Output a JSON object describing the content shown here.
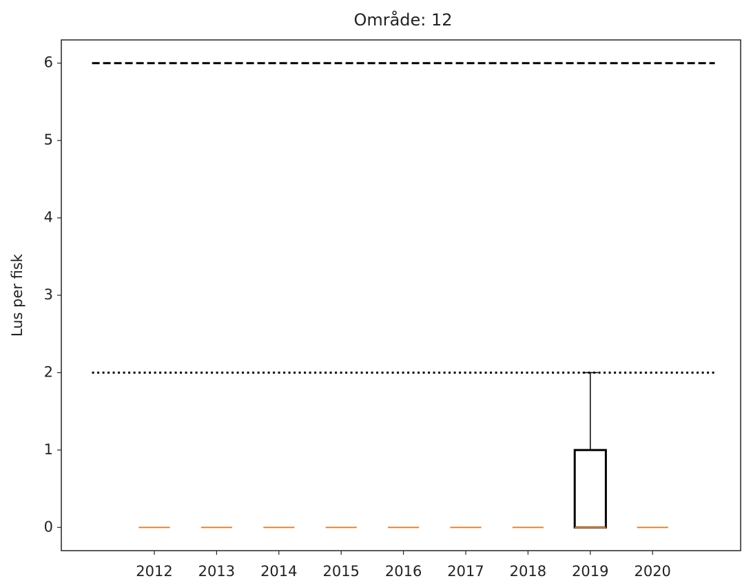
{
  "chart_data": {
    "type": "box",
    "title": "Område: 12",
    "y_label": "Lus per fisk",
    "categories": [
      "2012",
      "2013",
      "2014",
      "2015",
      "2016",
      "2017",
      "2018",
      "2019",
      "2020"
    ],
    "series": [
      {
        "name": null,
        "color": "#ff7f0e",
        "q1": [
          0,
          0,
          0,
          0,
          0,
          0,
          0,
          0,
          0
        ],
        "median": [
          0,
          0,
          0,
          0,
          0,
          0,
          0,
          0,
          0
        ],
        "q3": [
          0,
          0,
          0,
          0,
          0,
          0,
          0,
          1,
          0
        ],
        "whisker_low": [
          0,
          0,
          0,
          0,
          0,
          0,
          0,
          0,
          0
        ],
        "whisker_high": [
          0,
          0,
          0,
          0,
          0,
          0,
          0,
          2,
          0
        ]
      }
    ],
    "hlines": [
      {
        "value": 6,
        "style": "dashed"
      },
      {
        "value": 2,
        "style": "dotted"
      }
    ],
    "ylim": [
      -0.3,
      6.3
    ],
    "yticks": [
      0,
      1,
      2,
      3,
      4,
      5,
      6
    ]
  }
}
